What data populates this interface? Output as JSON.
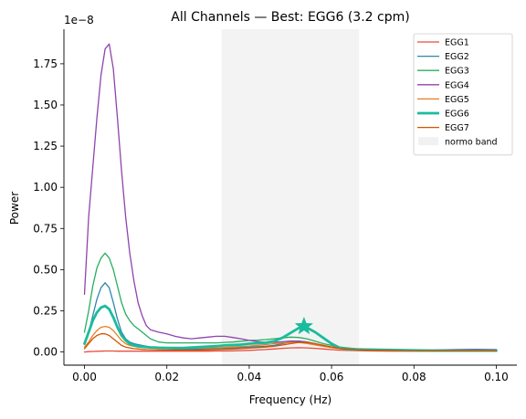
{
  "chart_data": {
    "type": "line",
    "title": "All Channels — Best: EGG6 (3.2 cpm)",
    "xlabel": "Frequency (Hz)",
    "ylabel": "Power",
    "y_scale_label": "1e−8",
    "xlim": [
      -0.005,
      0.105
    ],
    "ylim": [
      -0.08,
      1.96
    ],
    "x_ticks": [
      0.0,
      0.02,
      0.04,
      0.06,
      0.08,
      0.1
    ],
    "x_tick_labels": [
      "0.00",
      "0.02",
      "0.04",
      "0.06",
      "0.08",
      "0.10"
    ],
    "y_ticks": [
      0.0,
      0.25,
      0.5,
      0.75,
      1.0,
      1.25,
      1.5,
      1.75
    ],
    "y_tick_labels": [
      "0.00",
      "0.25",
      "0.50",
      "0.75",
      "1.00",
      "1.25",
      "1.50",
      "1.75"
    ],
    "grid": false,
    "legend_position": "top-right",
    "band": {
      "name": "normo band",
      "x0": 0.0333,
      "x1": 0.0667,
      "color": "#d8d8d8"
    },
    "best_marker": {
      "series": "EGG6",
      "x": 0.0533,
      "y": 0.155,
      "color": "#1abc9c"
    },
    "x": [
      0.0,
      0.001,
      0.002,
      0.003,
      0.004,
      0.005,
      0.006,
      0.007,
      0.008,
      0.009,
      0.01,
      0.011,
      0.012,
      0.013,
      0.014,
      0.015,
      0.016,
      0.018,
      0.02,
      0.022,
      0.024,
      0.026,
      0.028,
      0.03,
      0.032,
      0.034,
      0.036,
      0.038,
      0.04,
      0.042,
      0.044,
      0.046,
      0.048,
      0.05,
      0.052,
      0.054,
      0.056,
      0.058,
      0.06,
      0.062,
      0.064,
      0.066,
      0.068,
      0.07,
      0.075,
      0.08,
      0.085,
      0.09,
      0.095,
      0.1
    ],
    "series": [
      {
        "name": "EGG1",
        "color": "#e74c3c",
        "width": 1.3,
        "values": [
          0.0,
          0.002,
          0.003,
          0.004,
          0.005,
          0.006,
          0.006,
          0.006,
          0.005,
          0.005,
          0.005,
          0.005,
          0.005,
          0.005,
          0.005,
          0.005,
          0.005,
          0.005,
          0.005,
          0.005,
          0.005,
          0.005,
          0.005,
          0.005,
          0.006,
          0.006,
          0.007,
          0.008,
          0.01,
          0.012,
          0.015,
          0.018,
          0.022,
          0.025,
          0.026,
          0.025,
          0.022,
          0.018,
          0.014,
          0.011,
          0.009,
          0.008,
          0.007,
          0.006,
          0.005,
          0.005,
          0.005,
          0.005,
          0.005,
          0.005
        ]
      },
      {
        "name": "EGG2",
        "color": "#2e86ab",
        "width": 1.3,
        "values": [
          0.05,
          0.12,
          0.22,
          0.32,
          0.39,
          0.42,
          0.39,
          0.3,
          0.2,
          0.12,
          0.08,
          0.06,
          0.05,
          0.045,
          0.04,
          0.035,
          0.03,
          0.025,
          0.02,
          0.018,
          0.016,
          0.016,
          0.017,
          0.018,
          0.02,
          0.022,
          0.025,
          0.027,
          0.03,
          0.032,
          0.035,
          0.04,
          0.05,
          0.06,
          0.065,
          0.06,
          0.05,
          0.04,
          0.03,
          0.025,
          0.02,
          0.017,
          0.015,
          0.014,
          0.012,
          0.01,
          0.01,
          0.01,
          0.01,
          0.01
        ]
      },
      {
        "name": "EGG3",
        "color": "#27ae60",
        "width": 1.3,
        "values": [
          0.12,
          0.25,
          0.4,
          0.51,
          0.57,
          0.6,
          0.57,
          0.5,
          0.4,
          0.3,
          0.23,
          0.19,
          0.16,
          0.14,
          0.12,
          0.1,
          0.08,
          0.06,
          0.055,
          0.055,
          0.055,
          0.055,
          0.055,
          0.055,
          0.055,
          0.058,
          0.06,
          0.065,
          0.07,
          0.072,
          0.075,
          0.08,
          0.085,
          0.09,
          0.088,
          0.08,
          0.065,
          0.05,
          0.04,
          0.03,
          0.025,
          0.02,
          0.018,
          0.016,
          0.012,
          0.008,
          0.007,
          0.007,
          0.006,
          0.006
        ]
      },
      {
        "name": "EGG4",
        "color": "#8e44ad",
        "width": 1.3,
        "values": [
          0.35,
          0.82,
          1.12,
          1.42,
          1.68,
          1.84,
          1.87,
          1.72,
          1.42,
          1.1,
          0.82,
          0.6,
          0.43,
          0.3,
          0.22,
          0.16,
          0.135,
          0.12,
          0.11,
          0.095,
          0.085,
          0.08,
          0.085,
          0.09,
          0.095,
          0.095,
          0.088,
          0.08,
          0.07,
          0.063,
          0.058,
          0.058,
          0.062,
          0.066,
          0.066,
          0.06,
          0.05,
          0.04,
          0.03,
          0.025,
          0.02,
          0.018,
          0.017,
          0.016,
          0.014,
          0.012,
          0.012,
          0.015,
          0.016,
          0.015
        ]
      },
      {
        "name": "EGG5",
        "color": "#e67e22",
        "width": 1.3,
        "values": [
          0.03,
          0.06,
          0.1,
          0.13,
          0.15,
          0.155,
          0.15,
          0.13,
          0.1,
          0.07,
          0.05,
          0.04,
          0.035,
          0.03,
          0.028,
          0.026,
          0.025,
          0.024,
          0.023,
          0.023,
          0.023,
          0.023,
          0.023,
          0.024,
          0.025,
          0.027,
          0.03,
          0.033,
          0.036,
          0.04,
          0.045,
          0.05,
          0.055,
          0.058,
          0.058,
          0.052,
          0.043,
          0.034,
          0.026,
          0.02,
          0.016,
          0.013,
          0.011,
          0.01,
          0.008,
          0.007,
          0.006,
          0.006,
          0.006,
          0.006
        ]
      },
      {
        "name": "EGG6",
        "color": "#1abc9c",
        "width": 2.8,
        "values": [
          0.05,
          0.12,
          0.19,
          0.24,
          0.27,
          0.28,
          0.26,
          0.21,
          0.15,
          0.1,
          0.07,
          0.05,
          0.04,
          0.035,
          0.032,
          0.03,
          0.028,
          0.026,
          0.025,
          0.025,
          0.025,
          0.027,
          0.03,
          0.033,
          0.036,
          0.04,
          0.042,
          0.045,
          0.05,
          0.053,
          0.056,
          0.065,
          0.085,
          0.115,
          0.145,
          0.148,
          0.12,
          0.085,
          0.05,
          0.025,
          0.018,
          0.016,
          0.015,
          0.014,
          0.012,
          0.01,
          0.008,
          0.008,
          0.008,
          0.008
        ]
      },
      {
        "name": "EGG7",
        "color": "#d35400",
        "width": 1.3,
        "values": [
          0.02,
          0.05,
          0.08,
          0.1,
          0.11,
          0.11,
          0.1,
          0.08,
          0.06,
          0.04,
          0.03,
          0.025,
          0.02,
          0.018,
          0.016,
          0.015,
          0.014,
          0.013,
          0.012,
          0.012,
          0.012,
          0.012,
          0.012,
          0.013,
          0.014,
          0.016,
          0.018,
          0.02,
          0.023,
          0.026,
          0.03,
          0.035,
          0.042,
          0.05,
          0.058,
          0.058,
          0.05,
          0.04,
          0.03,
          0.022,
          0.017,
          0.014,
          0.012,
          0.011,
          0.009,
          0.008,
          0.007,
          0.007,
          0.007,
          0.007
        ]
      }
    ]
  }
}
